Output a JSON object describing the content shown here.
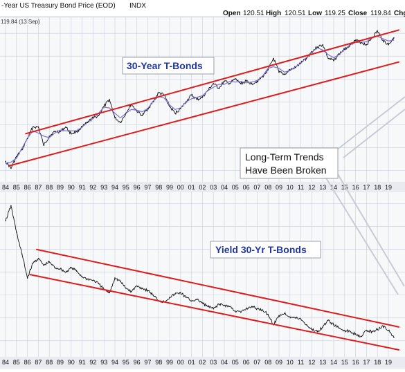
{
  "header": {
    "title": "-Year US Treasury Bond Price (EOD)",
    "exchange": "INDX",
    "open_label": "Open",
    "open_value": "120.51",
    "high_label": "High",
    "high_value": "120.51",
    "low_label": "Low",
    "low_value": "119.25",
    "close_label": "Close",
    "close_value": "119.84",
    "change_label": "Chg"
  },
  "price_tag": "119.84 (13 Sep)",
  "callout": {
    "line1": "Long-Term Trends",
    "line2": "Have Been Broken"
  },
  "colors": {
    "trend": "#e01b1b",
    "price": "#111111",
    "moving_average": "#7b6fd6",
    "grid": "#c9ced8",
    "panel_bg": "#f7f8fa",
    "axis_band": "#e9ebf0",
    "title_text": "#1f35a8"
  },
  "chart_data": [
    {
      "type": "line",
      "title": "30-Year T-Bonds",
      "x_tick_labels": [
        "84",
        "85",
        "86",
        "87",
        "88",
        "89",
        "90",
        "91",
        "92",
        "93",
        "94",
        "95",
        "96",
        "97",
        "98",
        "99",
        "00",
        "01",
        "02",
        "03",
        "04",
        "05",
        "06",
        "07",
        "08",
        "09",
        "10",
        "11",
        "12",
        "13",
        "14",
        "15",
        "16",
        "17",
        "18",
        "19"
      ],
      "x": [
        1984.0,
        1984.5,
        1985.0,
        1985.5,
        1986.0,
        1986.5,
        1987.0,
        1987.5,
        1988.0,
        1988.5,
        1989.0,
        1989.5,
        1990.0,
        1990.5,
        1991.0,
        1991.5,
        1992.0,
        1992.5,
        1993.0,
        1993.5,
        1994.0,
        1994.5,
        1995.0,
        1995.5,
        1996.0,
        1996.5,
        1997.0,
        1997.5,
        1998.0,
        1998.5,
        1999.0,
        1999.5,
        2000.0,
        2000.5,
        2001.0,
        2001.5,
        2002.0,
        2002.5,
        2003.0,
        2003.5,
        2004.0,
        2004.5,
        2005.0,
        2005.5,
        2006.0,
        2006.5,
        2007.0,
        2007.5,
        2008.0,
        2008.5,
        2009.0,
        2009.5,
        2010.0,
        2010.5,
        2011.0,
        2011.5,
        2012.0,
        2012.5,
        2013.0,
        2013.5,
        2014.0,
        2014.5,
        2015.0,
        2015.5,
        2016.0,
        2016.5,
        2017.0,
        2017.5,
        2018.0,
        2018.5,
        2019.0,
        2019.5
      ],
      "series": [
        {
          "values": [
            64,
            61,
            66,
            69,
            74,
            79,
            79,
            71,
            75,
            77,
            77,
            79,
            76,
            77,
            79,
            81,
            83,
            84,
            88,
            91,
            83,
            81,
            85,
            89,
            86,
            84,
            87,
            90,
            94,
            93,
            88,
            85,
            87,
            90,
            93,
            91,
            92,
            95,
            98,
            96,
            99,
            98,
            100,
            98,
            99,
            98,
            99,
            101,
            104,
            109,
            103,
            102,
            104,
            105,
            107,
            109,
            112,
            114,
            115,
            109,
            108,
            111,
            113,
            115,
            117,
            116,
            115,
            118,
            121,
            117,
            115,
            118
          ]
        }
      ],
      "annotations": [
        {
          "name": "upper-trend",
          "points": [
            [
              1985.8,
              76
            ],
            [
              2020.0,
              121.5
            ]
          ]
        },
        {
          "name": "lower-trend",
          "points": [
            [
              1984.3,
              62
            ],
            [
              2020.0,
              107.5
            ]
          ]
        }
      ]
    },
    {
      "type": "line",
      "title": "Yield 30-Yr T-Bonds",
      "x_tick_labels": [
        "84",
        "85",
        "86",
        "87",
        "88",
        "89",
        "90",
        "91",
        "92",
        "93",
        "94",
        "95",
        "96",
        "97",
        "98",
        "99",
        "00",
        "01",
        "02",
        "03",
        "04",
        "05",
        "06",
        "07",
        "08",
        "09",
        "10",
        "11",
        "12",
        "13",
        "14",
        "15",
        "16",
        "17",
        "18",
        "19"
      ],
      "x": [
        1984.0,
        1984.5,
        1985.0,
        1985.5,
        1986.0,
        1986.5,
        1987.0,
        1987.5,
        1988.0,
        1988.5,
        1989.0,
        1989.5,
        1990.0,
        1990.5,
        1991.0,
        1991.5,
        1992.0,
        1992.5,
        1993.0,
        1993.5,
        1994.0,
        1994.5,
        1995.0,
        1995.5,
        1996.0,
        1996.5,
        1997.0,
        1997.5,
        1998.0,
        1998.5,
        1999.0,
        1999.5,
        2000.0,
        2000.5,
        2001.0,
        2001.5,
        2002.0,
        2002.5,
        2003.0,
        2003.5,
        2004.0,
        2004.5,
        2005.0,
        2005.5,
        2006.0,
        2006.5,
        2007.0,
        2007.5,
        2008.0,
        2008.5,
        2009.0,
        2009.5,
        2010.0,
        2010.5,
        2011.0,
        2011.5,
        2012.0,
        2012.5,
        2013.0,
        2013.5,
        2014.0,
        2014.5,
        2015.0,
        2015.5,
        2016.0,
        2016.5,
        2017.0,
        2017.5,
        2018.0,
        2018.5,
        2019.0,
        2019.5
      ],
      "series": [
        {
          "values": [
            12.5,
            13.8,
            11.5,
            9.6,
            7.5,
            8.8,
            9.2,
            8.6,
            8.9,
            8.4,
            8.3,
            8.0,
            8.4,
            8.1,
            7.6,
            7.4,
            7.3,
            7.0,
            6.5,
            6.2,
            7.5,
            7.2,
            6.6,
            6.3,
            6.8,
            6.6,
            6.4,
            6.0,
            5.5,
            5.4,
            5.8,
            6.1,
            6.2,
            5.8,
            5.5,
            5.6,
            5.3,
            5.0,
            4.8,
            5.2,
            5.1,
            5.0,
            4.6,
            4.5,
            4.8,
            5.0,
            4.8,
            4.7,
            4.3,
            3.4,
            4.2,
            4.4,
            4.1,
            4.0,
            3.9,
            3.4,
            3.0,
            2.8,
            3.2,
            3.8,
            3.4,
            3.1,
            2.9,
            2.8,
            2.6,
            2.4,
            2.9,
            2.8,
            3.0,
            3.3,
            2.9,
            2.3
          ]
        }
      ],
      "annotations": [
        {
          "name": "upper-trend",
          "points": [
            [
              1986.8,
              10.0
            ],
            [
              2020.0,
              3.2
            ]
          ]
        },
        {
          "name": "lower-trend",
          "points": [
            [
              1986.2,
              7.8
            ],
            [
              2020.0,
              1.2
            ]
          ]
        }
      ]
    }
  ]
}
